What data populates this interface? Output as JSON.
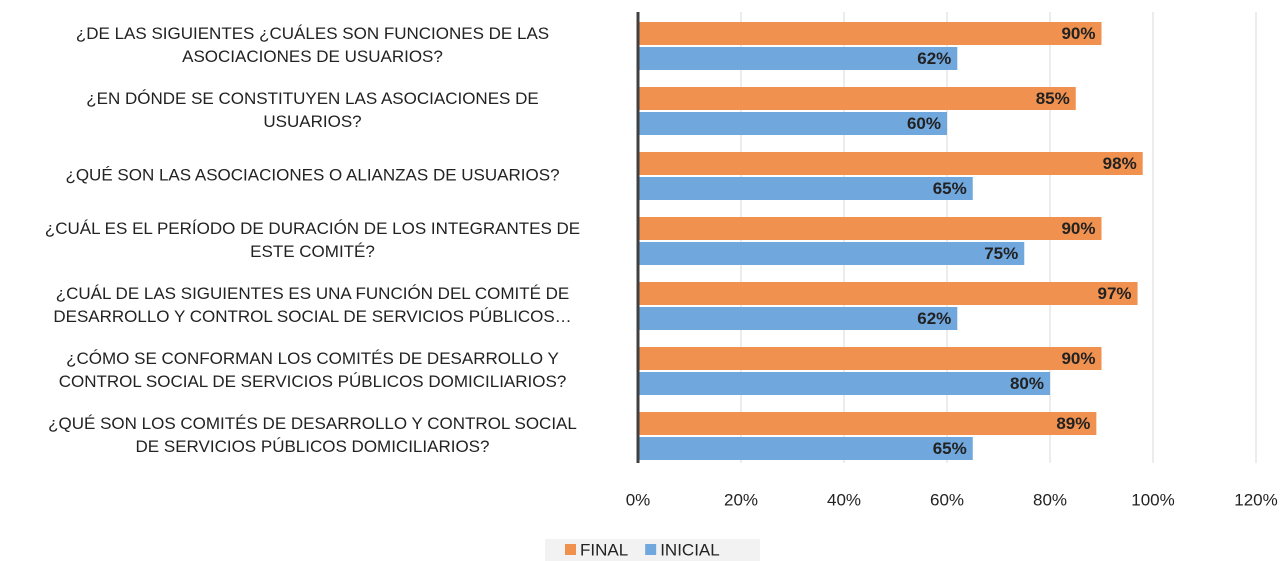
{
  "chart_data": {
    "type": "bar",
    "orientation": "horizontal",
    "categories": [
      "¿DE LAS SIGUIENTES ¿CUÁLES SON FUNCIONES DE LAS\nASOCIACIONES DE USUARIOS?",
      "¿EN DÓNDE SE CONSTITUYEN LAS ASOCIACIONES DE\nUSUARIOS?",
      "¿QUÉ SON LAS ASOCIACIONES O ALIANZAS DE USUARIOS?",
      "¿CUÁL ES EL PERÍODO DE DURACIÓN DE LOS INTEGRANTES DE\nESTE COMITÉ?",
      "¿CUÁL DE LAS SIGUIENTES ES UNA FUNCIÓN DEL COMITÉ DE\nDESARROLLO Y CONTROL SOCIAL DE SERVICIOS PÚBLICOS…",
      "¿CÓMO SE CONFORMAN LOS COMITÉS DE DESARROLLO Y\nCONTROL SOCIAL DE SERVICIOS PÚBLICOS DOMICILIARIOS?",
      "¿QUÉ SON LOS COMITÉS DE DESARROLLO Y CONTROL SOCIAL\nDE SERVICIOS PÚBLICOS DOMICILIARIOS?"
    ],
    "series": [
      {
        "name": "FINAL",
        "color": "#f0914f",
        "values": [
          90,
          85,
          98,
          90,
          97,
          90,
          89
        ],
        "value_labels": [
          "90%",
          "85%",
          "98%",
          "90%",
          "97%",
          "90%",
          "89%"
        ]
      },
      {
        "name": "INICIAL",
        "color": "#70a7dd",
        "values": [
          62,
          60,
          65,
          75,
          62,
          80,
          65
        ],
        "value_labels": [
          "62%",
          "60%",
          "65%",
          "75%",
          "62%",
          "80%",
          "65%"
        ]
      }
    ],
    "xlim": [
      0,
      120
    ],
    "xticks": [
      {
        "value": 0,
        "label": "0%"
      },
      {
        "value": 20,
        "label": "20%"
      },
      {
        "value": 40,
        "label": "40%"
      },
      {
        "value": 60,
        "label": "60%"
      },
      {
        "value": 80,
        "label": "80%"
      },
      {
        "value": 100,
        "label": "100%"
      },
      {
        "value": 120,
        "label": "120%"
      }
    ],
    "grid": true,
    "legend": "bottom"
  }
}
